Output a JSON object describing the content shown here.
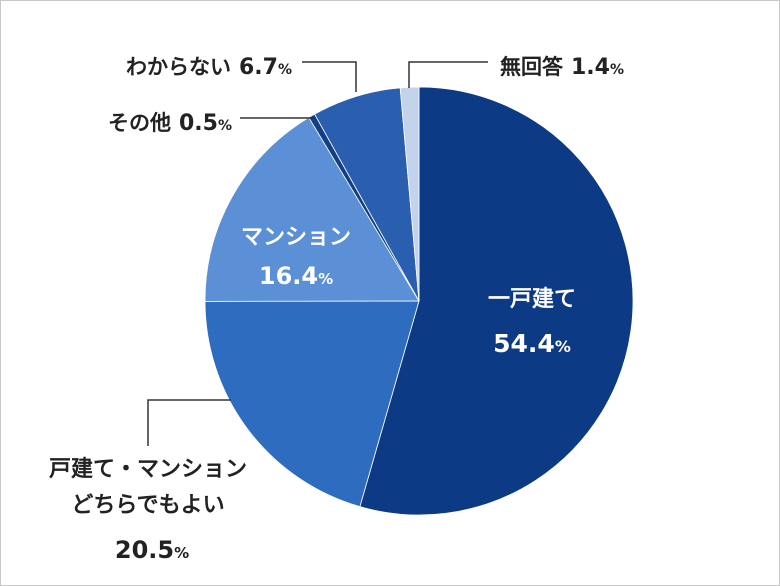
{
  "chart_data": {
    "type": "pie",
    "title": "",
    "start": "top",
    "direction": "clockwise",
    "slices": [
      {
        "label": "一戸建て",
        "value": 54.4,
        "value_text": "54.4",
        "color": "#0d3a85"
      },
      {
        "label": "戸建て・マンション どちらでもよい",
        "line1": "戸建て・マンション",
        "line2": "どちらでもよい",
        "value": 20.5,
        "value_text": "20.5",
        "color": "#2e6cc0"
      },
      {
        "label": "マンション",
        "value": 16.4,
        "value_text": "16.4",
        "color": "#5b8fd6"
      },
      {
        "label": "その他",
        "value": 0.5,
        "value_text": "0.5",
        "color": "#123f88"
      },
      {
        "label": "わからない",
        "value": 6.7,
        "value_text": "6.7",
        "color": "#2a5fb0"
      },
      {
        "label": "無回答",
        "value": 1.4,
        "value_text": "1.4",
        "color": "#c3d3ec"
      }
    ],
    "unit": "%"
  }
}
